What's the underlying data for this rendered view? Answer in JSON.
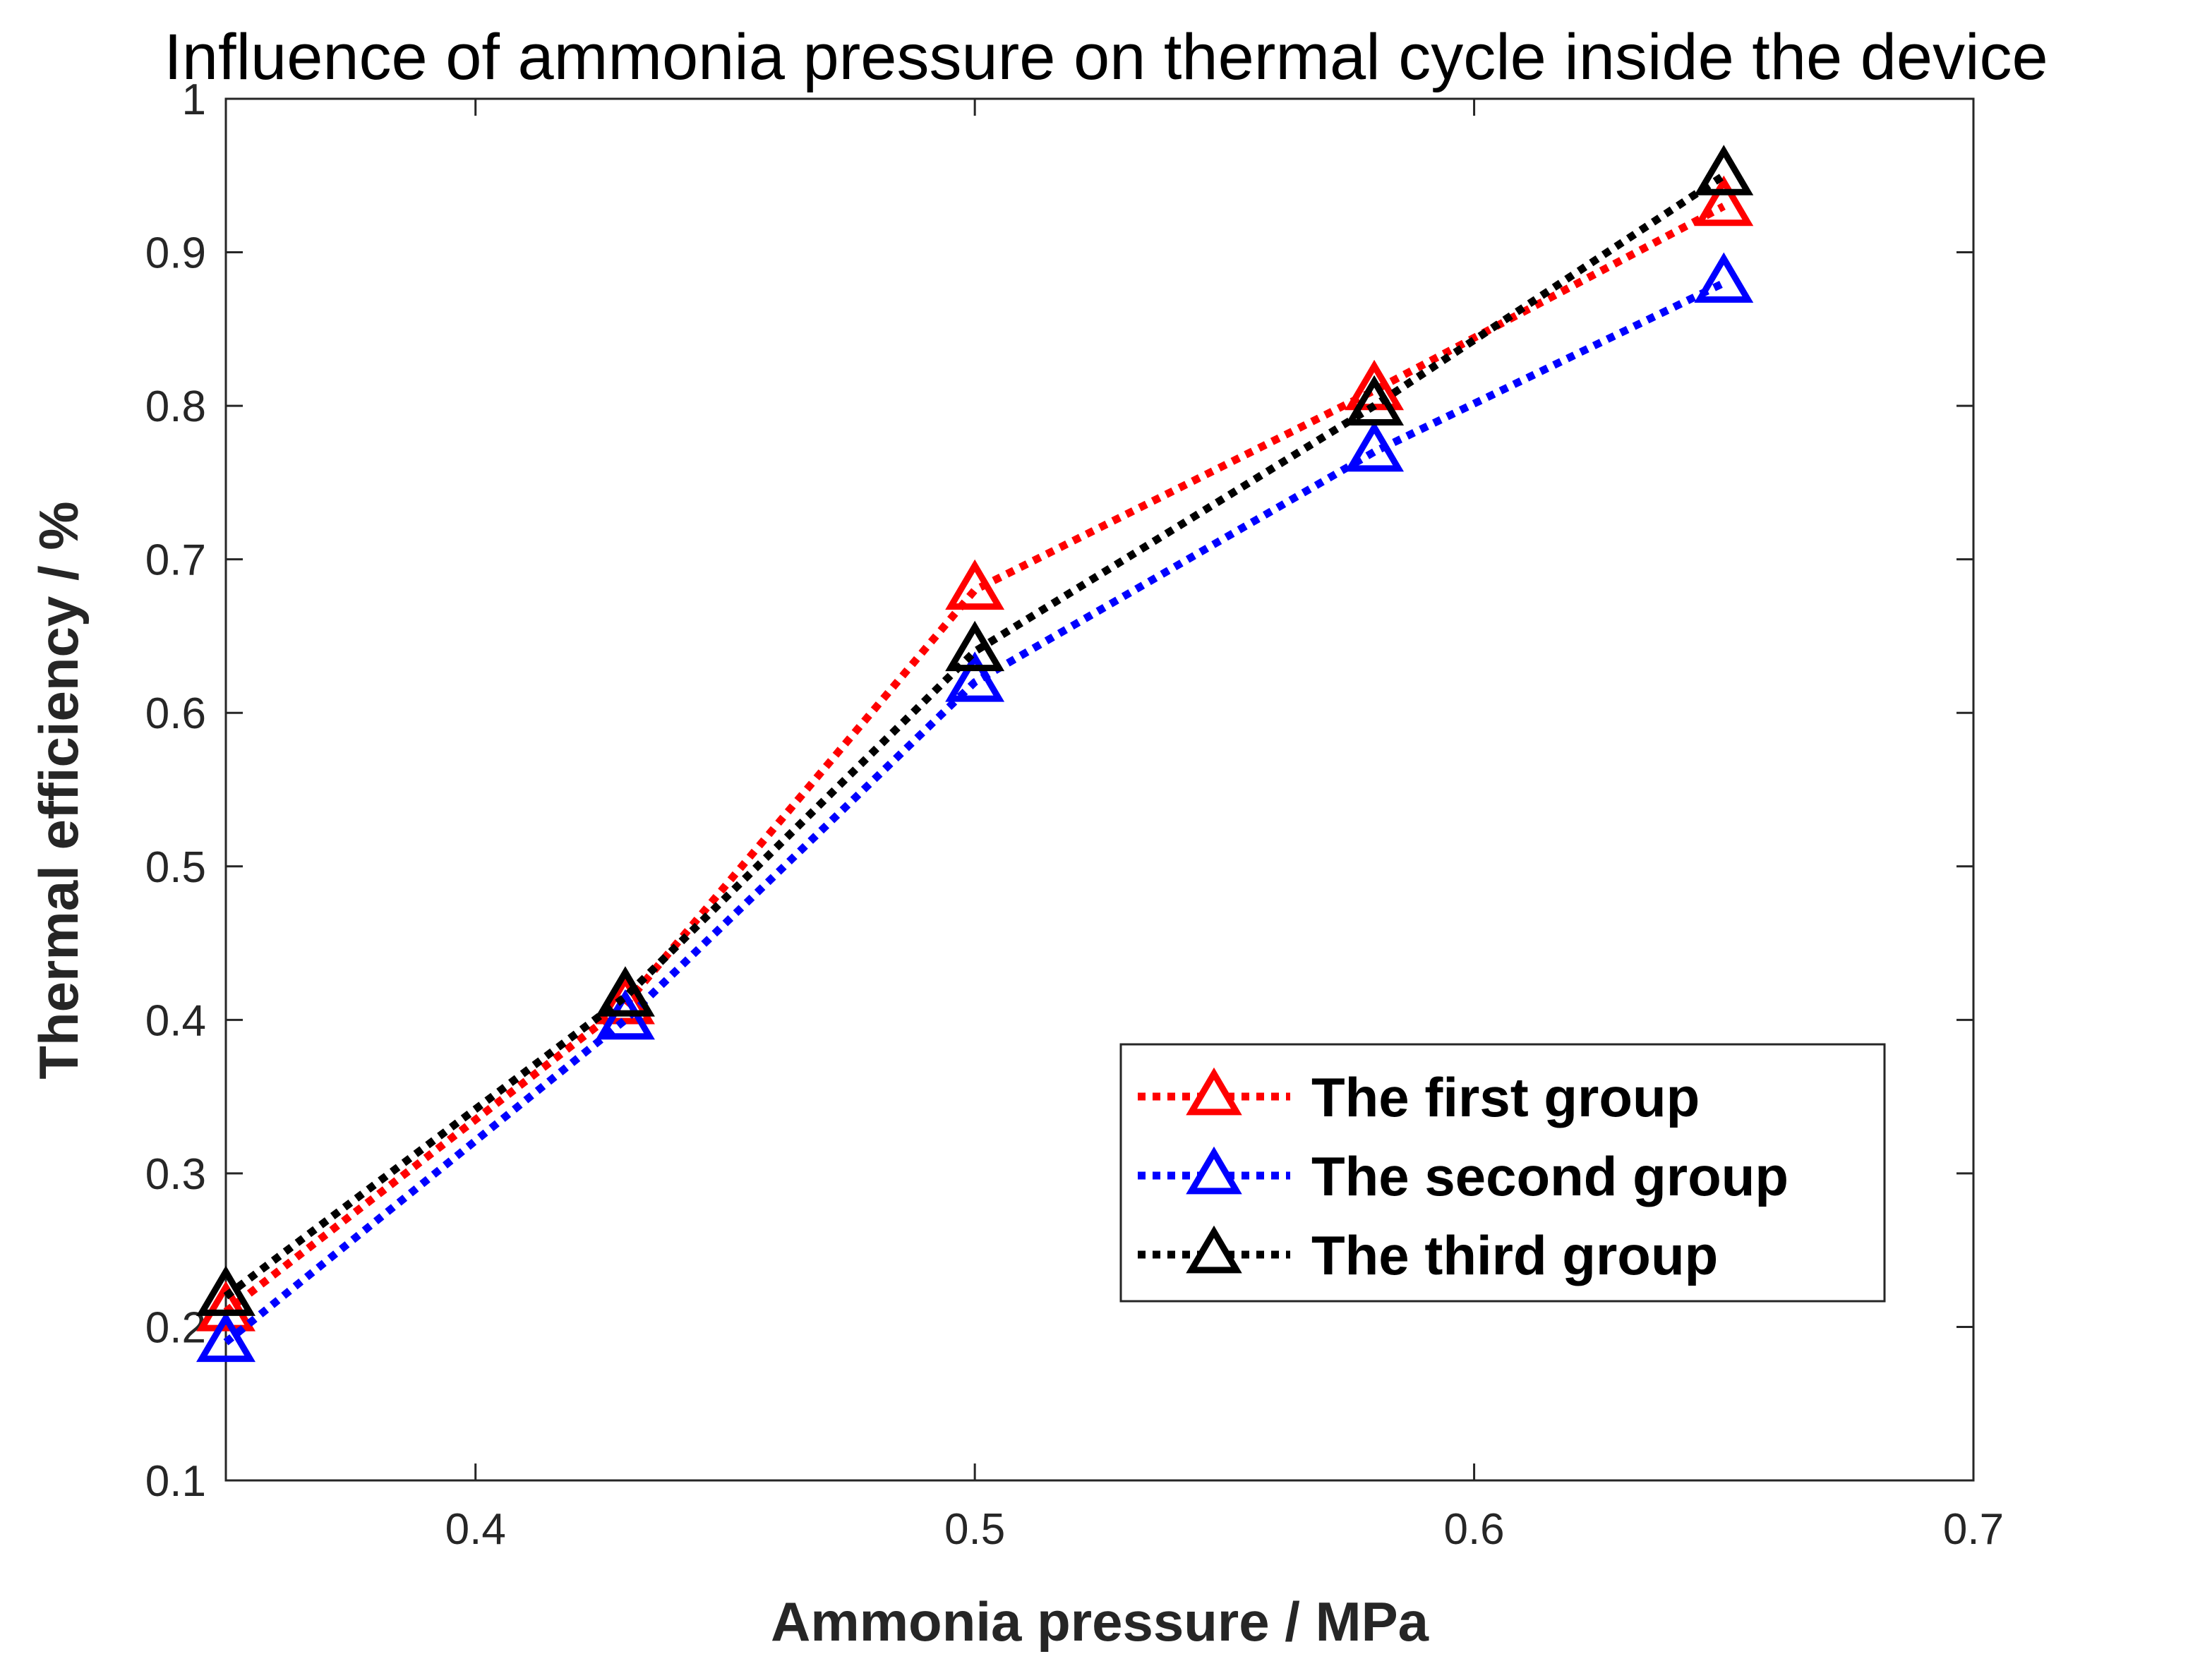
{
  "chart_data": {
    "type": "line",
    "title": "Influence of ammonia pressure on thermal cycle inside the device",
    "xlabel": "Ammonia pressure / MPa",
    "ylabel": "Thermal efficiency / %",
    "xlim": [
      0.35,
      0.7
    ],
    "ylim": [
      0.1,
      1.0
    ],
    "xticks": [
      0.4,
      0.5,
      0.6,
      0.7
    ],
    "xtick_labels": [
      "0.4",
      "0.5",
      "0.6",
      "0.7"
    ],
    "yticks": [
      0.1,
      0.2,
      0.3,
      0.4,
      0.5,
      0.6,
      0.7,
      0.8,
      0.9,
      1.0
    ],
    "ytick_labels": [
      "0.1",
      "0.2",
      "0.3",
      "0.4",
      "0.5",
      "0.6",
      "0.7",
      "0.8",
      "0.9",
      "1"
    ],
    "grid": false,
    "legend_position": "bottom-right",
    "x": [
      0.35,
      0.43,
      0.5,
      0.58,
      0.65
    ],
    "series": [
      {
        "name": "The first group",
        "color": "#ff0000",
        "marker": "triangle",
        "line_style": "dotted",
        "values": [
          0.21,
          0.41,
          0.68,
          0.81,
          0.93
        ]
      },
      {
        "name": "The second group",
        "color": "#0000ff",
        "marker": "triangle",
        "line_style": "dotted",
        "values": [
          0.19,
          0.4,
          0.62,
          0.77,
          0.88
        ]
      },
      {
        "name": "The third group",
        "color": "#000000",
        "marker": "triangle",
        "line_style": "dotted",
        "values": [
          0.22,
          0.415,
          0.64,
          0.8,
          0.95
        ]
      }
    ]
  }
}
